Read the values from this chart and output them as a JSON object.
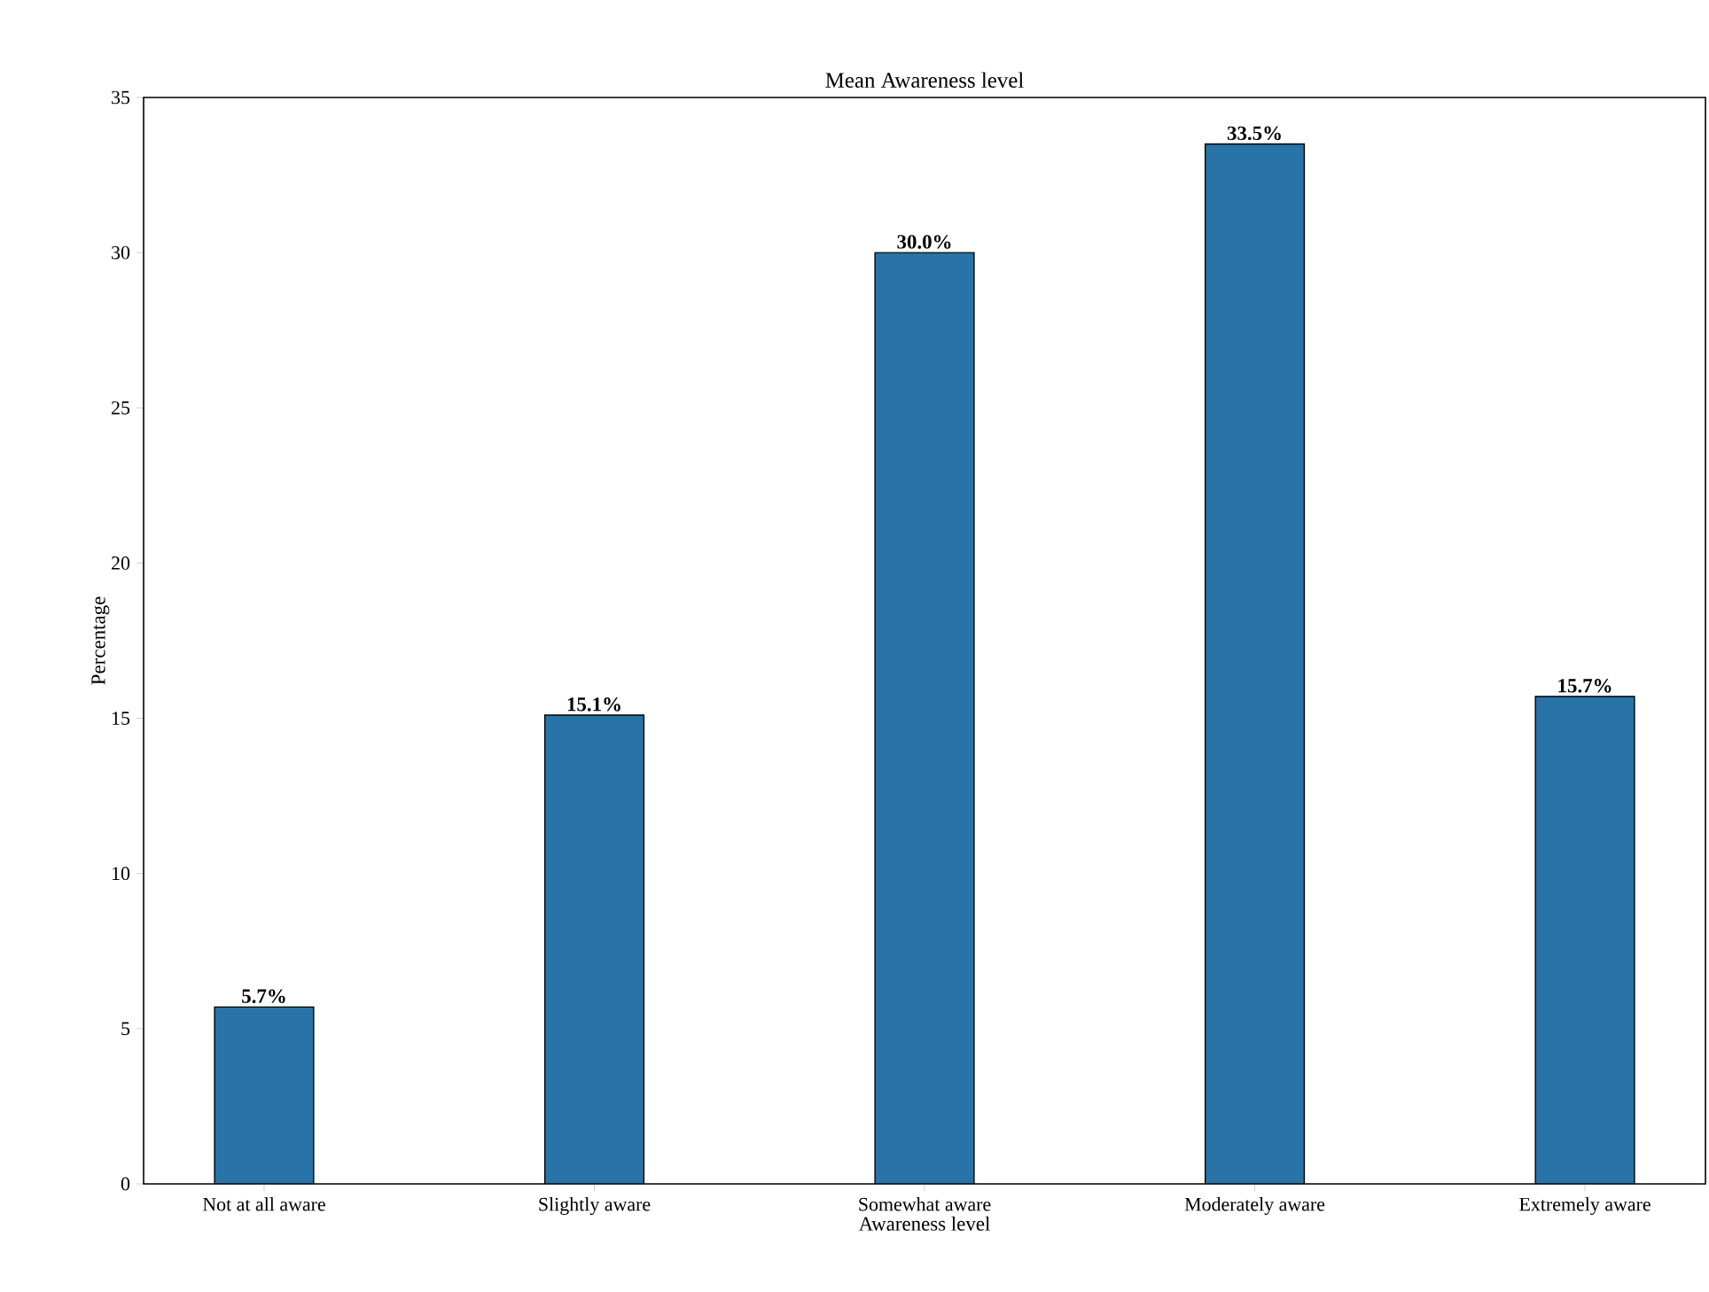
{
  "chart_data": {
    "type": "bar",
    "title": "Mean Awareness level",
    "xlabel": "Awareness level",
    "ylabel": "Percentage",
    "categories": [
      "Not at all aware",
      "Slightly aware",
      "Somewhat aware",
      "Moderately aware",
      "Extremely aware"
    ],
    "values": [
      5.7,
      15.1,
      30.0,
      33.5,
      15.7
    ],
    "value_labels": [
      "5.7%",
      "15.1%",
      "30.0%",
      "33.5%",
      "15.7%"
    ],
    "color": "#2873a8",
    "ylim": [
      0,
      35
    ],
    "yticks": [
      0,
      5,
      10,
      15,
      20,
      25,
      30,
      35
    ]
  }
}
